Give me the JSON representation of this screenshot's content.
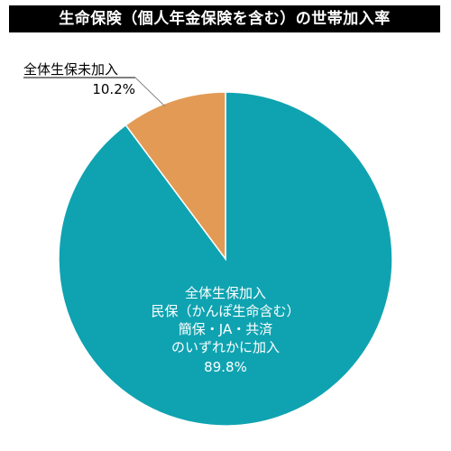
{
  "title": "生命保険（個人年金保険を含む）の世帯加入率",
  "colors": {
    "title_bg": "#000000",
    "title_text": "#ffffff",
    "slice_joined": "#0fa3b1",
    "slice_not_joined": "#e39a55",
    "slice_border": "#ffffff",
    "label_text": "#ffffff",
    "outer_label_text": "#000000"
  },
  "chart_data": {
    "type": "pie",
    "title": "生命保険（個人年金保険を含む）の世帯加入率",
    "slices": [
      {
        "label_lines": [
          "全体生保加入",
          "民保（かんぽ生命含む）",
          "簡保・JA・共済",
          "のいずれかに加入"
        ],
        "value": 89.8,
        "value_label": "89.8%",
        "color": "#0fa3b1"
      },
      {
        "label_lines": [
          "全体生保未加入"
        ],
        "value": 10.2,
        "value_label": "10.2%",
        "color": "#e39a55"
      }
    ],
    "start": "12 o'clock",
    "direction": "clockwise",
    "legend": "none"
  }
}
